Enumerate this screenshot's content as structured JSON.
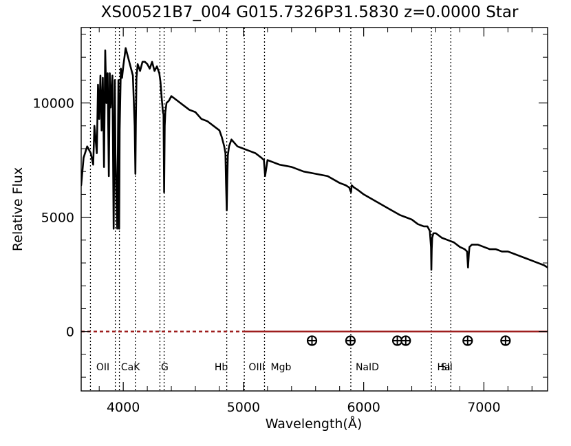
{
  "chart_data": {
    "type": "line",
    "title": "XS00521B7_004  G015.7326P31.5830  z=0.0000   Star",
    "xlabel": "Wavelength(Å)",
    "ylabel": "Relative Flux",
    "xlim": [
      3650,
      7530
    ],
    "ylim": [
      -2600,
      13300
    ],
    "grid": false,
    "legend": "none",
    "x_ticks": [
      {
        "value": 4000,
        "label": "4000"
      },
      {
        "value": 5000,
        "label": "5000"
      },
      {
        "value": 6000,
        "label": "6000"
      },
      {
        "value": 7000,
        "label": "7000"
      }
    ],
    "y_ticks": [
      {
        "value": 0,
        "label": "0"
      },
      {
        "value": 5000,
        "label": "5000"
      },
      {
        "value": 10000,
        "label": "10000"
      }
    ],
    "series": [
      {
        "x": [
          3650,
          3670,
          3700,
          3730,
          3750,
          3760,
          3780,
          3790,
          3800,
          3810,
          3820,
          3830,
          3840,
          3850,
          3860,
          3870,
          3880,
          3888,
          3895,
          3910,
          3920,
          3930,
          3935,
          3940,
          3950,
          3960,
          3966,
          3970,
          3980,
          3990,
          4000,
          4020,
          4040,
          4060,
          4080,
          4095,
          4101,
          4105,
          4110,
          4120,
          4140,
          4160,
          4180,
          4200,
          4220,
          4240,
          4260,
          4280,
          4300,
          4310,
          4320,
          4330,
          4335,
          4340,
          4345,
          4350,
          4360,
          4380,
          4400,
          4450,
          4500,
          4550,
          4600,
          4650,
          4700,
          4750,
          4800,
          4820,
          4840,
          4850,
          4855,
          4861,
          4865,
          4870,
          4880,
          4900,
          4950,
          5000,
          5050,
          5100,
          5150,
          5170,
          5180,
          5200,
          5250,
          5300,
          5400,
          5500,
          5600,
          5700,
          5800,
          5850,
          5880,
          5890,
          5895,
          5900,
          5920,
          5950,
          6000,
          6100,
          6200,
          6300,
          6350,
          6400,
          6450,
          6500,
          6530,
          6550,
          6560,
          6563,
          6566,
          6570,
          6580,
          6600,
          6650,
          6700,
          6750,
          6800,
          6840,
          6860,
          6868,
          6875,
          6880,
          6900,
          6950,
          7000,
          7050,
          7100,
          7150,
          7200,
          7250,
          7300,
          7350,
          7400,
          7450,
          7500,
          7530
        ],
        "y": [
          6400,
          7600,
          8100,
          7800,
          7300,
          9000,
          7800,
          10800,
          9300,
          11200,
          8800,
          11100,
          7200,
          12300,
          10000,
          11300,
          6800,
          11300,
          9800,
          11200,
          4500,
          11000,
          7800,
          6500,
          4500,
          11000,
          4500,
          8800,
          11500,
          11100,
          11600,
          12400,
          12000,
          11600,
          11200,
          9000,
          6900,
          9200,
          11100,
          11700,
          11400,
          11800,
          11800,
          11700,
          11500,
          11800,
          11400,
          11600,
          11300,
          10900,
          10200,
          9600,
          9500,
          6100,
          9000,
          9600,
          10000,
          10100,
          10300,
          10100,
          9900,
          9700,
          9600,
          9300,
          9200,
          9000,
          8800,
          8500,
          8100,
          7800,
          6500,
          5300,
          6600,
          7700,
          8100,
          8400,
          8100,
          8000,
          7900,
          7800,
          7600,
          7500,
          6800,
          7500,
          7400,
          7300,
          7200,
          7000,
          6900,
          6800,
          6500,
          6400,
          6300,
          6150,
          6100,
          6400,
          6300,
          6200,
          6000,
          5700,
          5400,
          5100,
          5000,
          4900,
          4700,
          4600,
          4600,
          4400,
          3700,
          2700,
          3600,
          4100,
          4300,
          4300,
          4100,
          4000,
          3900,
          3700,
          3600,
          3500,
          2800,
          3400,
          3700,
          3800,
          3800,
          3700,
          3600,
          3600,
          3500,
          3500,
          3400,
          3300,
          3200,
          3100,
          3000,
          2900,
          2800
        ]
      },
      {
        "x": [
          3650,
          7530
        ],
        "y": [
          0,
          0
        ],
        "color": "#9c1a1a"
      }
    ],
    "markers": [
      {
        "x": 5570,
        "y": -400,
        "color": "#000000"
      },
      {
        "x": 5890,
        "y": -400,
        "color": "#000000"
      },
      {
        "x": 6280,
        "y": -400,
        "color": "#000000"
      },
      {
        "x": 6350,
        "y": -400,
        "color": "#000000"
      },
      {
        "x": 6865,
        "y": -400,
        "color": "#000000"
      },
      {
        "x": 7180,
        "y": -400,
        "color": "#000000"
      }
    ],
    "spectral_lines": [
      {
        "x": 3727,
        "label": "OII"
      },
      {
        "x": 3934,
        "label": "CaK"
      },
      {
        "x": 3968
      },
      {
        "x": 4101
      },
      {
        "x": 4305,
        "label": "G"
      },
      {
        "x": 4340
      },
      {
        "x": 4861,
        "label": "Hb"
      },
      {
        "x": 5007,
        "label": "OIII"
      },
      {
        "x": 5175,
        "label": "Mgb"
      },
      {
        "x": 5893,
        "label": "NaID"
      },
      {
        "x": 6563,
        "label": "Ha"
      },
      {
        "x": 6725,
        "label": "SII"
      }
    ],
    "annotations": [
      {
        "x": 3727,
        "text": "OII"
      },
      {
        "x": 3934,
        "text": "CaK"
      },
      {
        "x": 4305,
        "text": "G"
      },
      {
        "x": 4861,
        "text": "Hb"
      },
      {
        "x": 5007,
        "text": "OIII"
      },
      {
        "x": 5175,
        "text": "Mgb"
      },
      {
        "x": 5893,
        "text": "NaID"
      },
      {
        "x": 6563,
        "text": "Ha"
      },
      {
        "x": 6725,
        "text": "SII"
      }
    ],
    "colors": {
      "axis": "#000000",
      "spectrum": "#000000",
      "guide": "#000000",
      "zero_line": "#9c1a1a",
      "marker": "#000000"
    }
  }
}
